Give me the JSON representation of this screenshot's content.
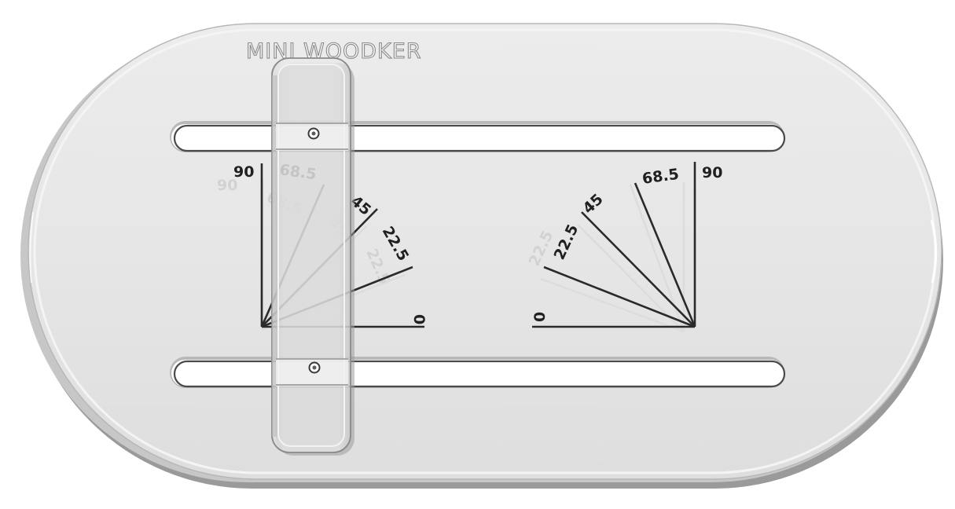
{
  "brand": {
    "name": "MINI WOODKER"
  },
  "colors": {
    "plate": "#e8e8e8",
    "plate_edge": "#c9c9c9",
    "slot": "#ffffff",
    "marking": "#202020",
    "ghost_marking": "#d2d2d2",
    "fence": "#e2e2e2"
  },
  "protractor_left": {
    "angle_labels": [
      "90",
      "68.5",
      "45",
      "22.5",
      "0"
    ]
  },
  "protractor_right": {
    "angle_labels": [
      "0",
      "22.5",
      "45",
      "68.5",
      "90"
    ]
  }
}
